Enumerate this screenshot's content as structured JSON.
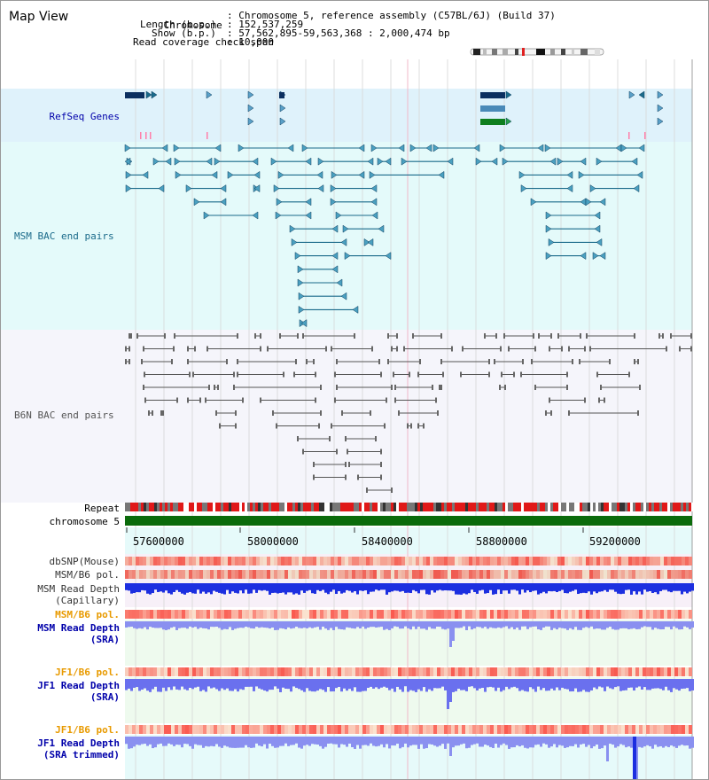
{
  "header": {
    "title": "Map View",
    "chromosome_label": "Chromosome",
    "chromosome_value": ": Chromosome 5, reference assembly (C57BL/6J) (Build 37)",
    "length_label": "Length (b.p.)",
    "length_value": ": 152,537,259",
    "show_label": "Show (b.p.)",
    "show_value": ": 57,562,895-59,563,368 : 2,000,474 bp",
    "coverage_label": "Read coverage check span",
    "coverage_value": ": 10,000"
  },
  "tracks": {
    "refseq": "RefSeq Genes",
    "msm_bac": "MSM BAC end pairs",
    "b6n_bac": "B6N BAC end pairs",
    "repeat": "Repeat",
    "chromosome": "chromosome 5",
    "dbsnp": "dbSNP(Mouse)",
    "msm_b6_pol": "MSM/B6 pol.",
    "msm_read_depth": "MSM Read Depth",
    "capillary": "(Capillary)",
    "msm_b6_pol_2": "MSM/B6 pol.",
    "msm_read_depth_sra": "MSM Read Depth",
    "sra": "(SRA)",
    "jf1_b6_pol": "JF1/B6 pol.",
    "jf1_read_depth": "JF1 Read Depth",
    "sra2": "(SRA)",
    "jf1_b6_pol_2": "JF1/B6 pol.",
    "jf1_read_depth_trim": "JF1 Read Depth",
    "sra_trimmed": "(SRA trimmed)"
  },
  "axis": {
    "ticks": [
      "57600000",
      "58000000",
      "58400000",
      "58800000",
      "59200000"
    ]
  },
  "colors": {
    "refseq_bg": "#dff2fb",
    "msm_bg": "#e4fafa",
    "b6n_bg": "#f5f5fb",
    "teal": "#1a6a8a",
    "gray_line": "#555555",
    "chrom_green": "#0b6b0b",
    "depth_blue": "#1c2fe0",
    "depth_sra": "#8a90f0",
    "pol_red": "#f04848",
    "label_blue": "#0000aa",
    "label_orange": "#e89a00"
  }
}
